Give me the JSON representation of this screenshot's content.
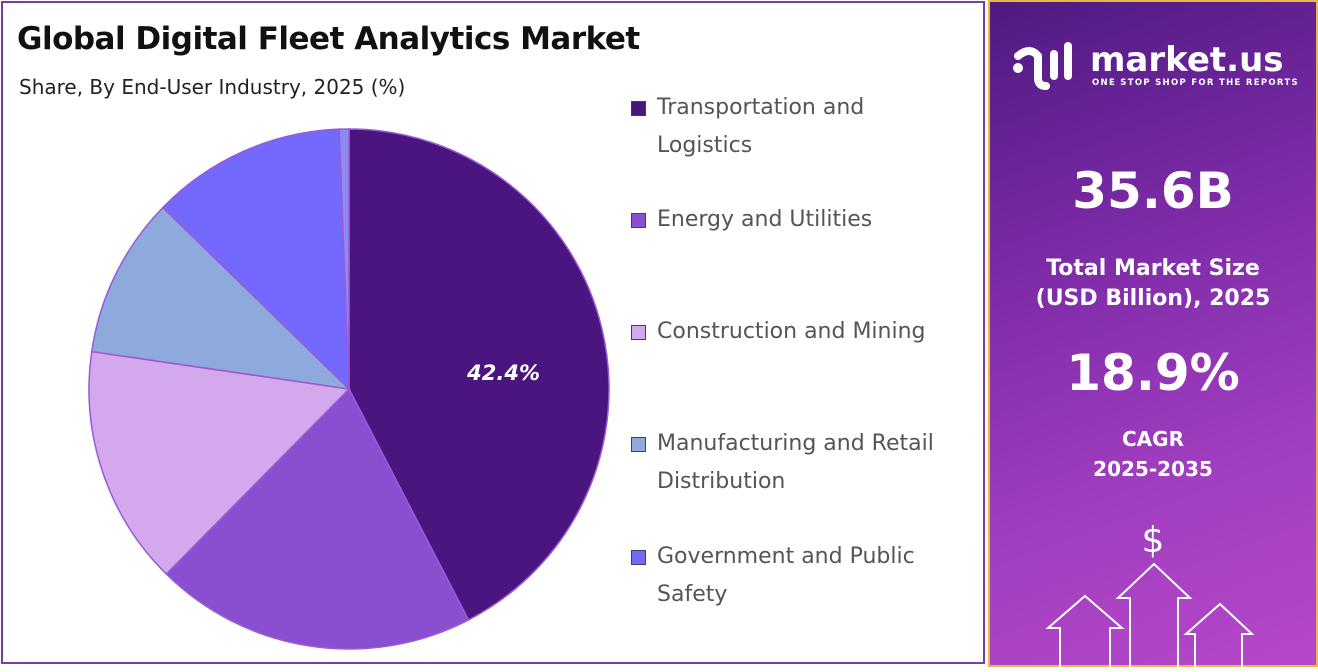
{
  "chart_data": {
    "type": "pie",
    "title": "Global Digital Fleet Analytics Market",
    "subtitle": "Share, By End-User Industry, 2025 (%)",
    "legend_position": "right",
    "slices": [
      {
        "label": "Transportation and Logistics",
        "value": 42.4,
        "color": "#4b1580",
        "data_label": "42.4%"
      },
      {
        "label": "Energy and Utilities",
        "value": 20.0,
        "color": "#8a4fd0"
      },
      {
        "label": "Construction and Mining",
        "value": 14.9,
        "color": "#d4a8ec"
      },
      {
        "label": "Manufacturing and Retail Distribution",
        "value": 10.0,
        "color": "#8eaadc"
      },
      {
        "label": "Government and Public Safety",
        "value": 12.1,
        "color": "#7369ff"
      },
      {
        "label": "",
        "value": 0.6,
        "color": "#8c8cf0"
      }
    ]
  },
  "legend": [
    {
      "line1": "Transportation and",
      "line2": "Logistics"
    },
    {
      "line1": "Energy and Utilities",
      "line2": ""
    },
    {
      "line1": "Construction and Mining",
      "line2": ""
    },
    {
      "line1": "Manufacturing and Retail",
      "line2": "Distribution"
    },
    {
      "line1": "Government and Public",
      "line2": "Safety"
    }
  ],
  "sidebar": {
    "logo_name": "market.us",
    "logo_tagline": "ONE STOP SHOP FOR THE REPORTS",
    "market_size": "35.6B",
    "market_size_label1": "Total Market Size",
    "market_size_label2": "(USD Billion), 2025",
    "cagr": "18.9%",
    "cagr_label1": "CAGR",
    "cagr_label2": "2025-2035",
    "currency_symbol": "$"
  }
}
